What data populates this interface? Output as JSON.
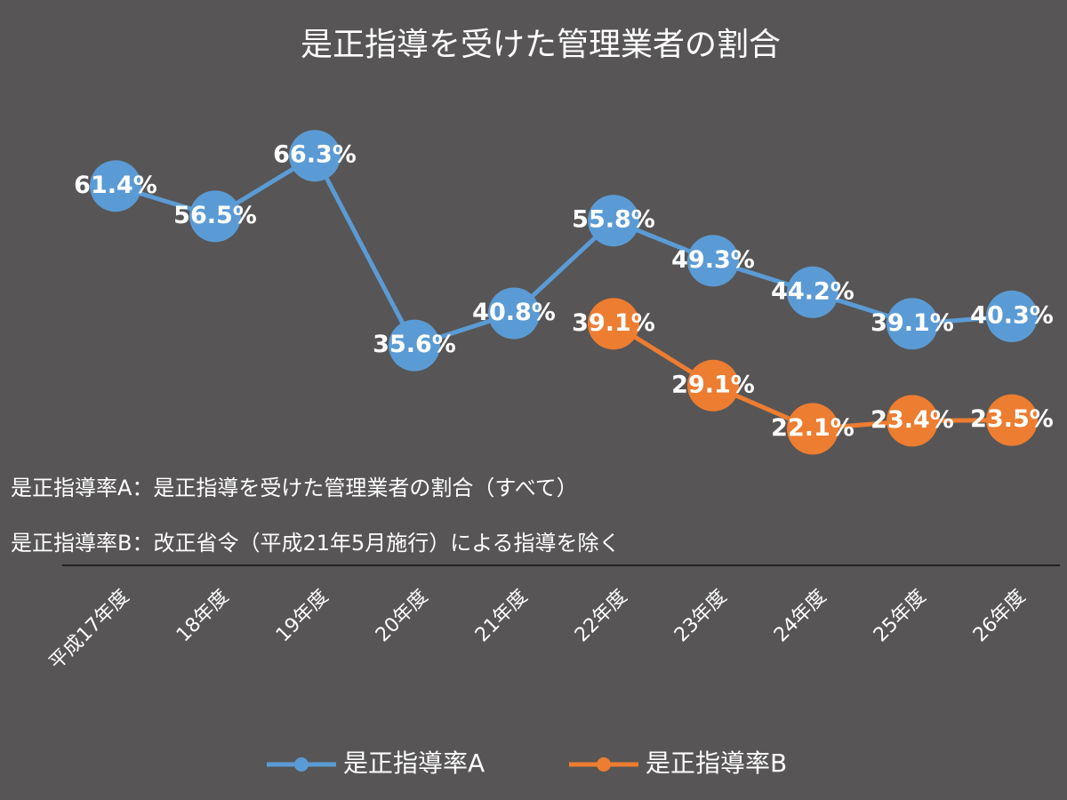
{
  "chart_data": {
    "type": "line",
    "title": "是正指導を受けた管理業者の割合",
    "categories": [
      "平成17年度",
      "18年度",
      "19年度",
      "20年度",
      "21年度",
      "22年度",
      "23年度",
      "24年度",
      "25年度",
      "26年度"
    ],
    "series": [
      {
        "name": "是正指導率A",
        "color": "#5b9bd5",
        "values": [
          61.4,
          56.5,
          66.3,
          35.6,
          40.8,
          55.8,
          49.3,
          44.2,
          39.1,
          40.3
        ],
        "value_labels": [
          "61.4%",
          "56.5%",
          "66.3%",
          "35.6%",
          "40.8%",
          "55.8%",
          "49.3%",
          "44.2%",
          "39.1%",
          "40.3%"
        ]
      },
      {
        "name": "是正指導率B",
        "color": "#ed7d31",
        "values": [
          null,
          null,
          null,
          null,
          null,
          39.1,
          29.1,
          22.1,
          23.4,
          23.5
        ],
        "value_labels": [
          null,
          null,
          null,
          null,
          null,
          "39.1%",
          "29.1%",
          "22.1%",
          "23.4%",
          "23.5%"
        ]
      }
    ],
    "annotations": [
      "是正指導率A：是正指導を受けた管理業者の割合（すべて）",
      "是正指導率B：改正省令（平成21年5月施行）による指導を除く"
    ],
    "legend": "bottom"
  }
}
